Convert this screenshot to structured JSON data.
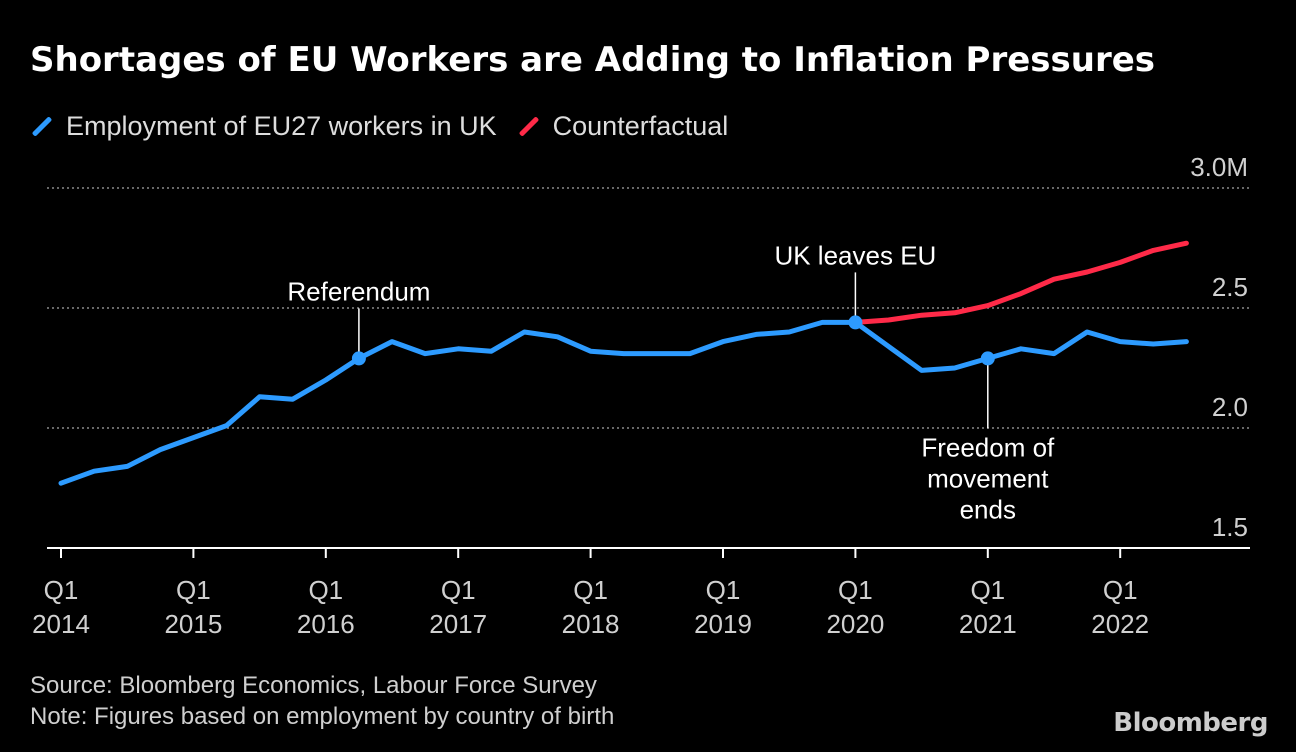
{
  "title": "Shortages of EU Workers are Adding to Inflation Pressures",
  "legend": [
    {
      "label": "Employment of EU27 workers in UK",
      "color": "#2d9bff"
    },
    {
      "label": "Counterfactual",
      "color": "#ff2a48"
    }
  ],
  "footer": {
    "source": "Source: Bloomberg Economics, Labour Force Survey",
    "note": "Note: Figures based on employment by country of birth"
  },
  "brand": "Bloomberg",
  "chart_data": {
    "type": "line",
    "ylim": [
      1.5,
      3.0
    ],
    "y_ticks": [
      {
        "value": 1.5,
        "label": "1.5"
      },
      {
        "value": 2.0,
        "label": "2.0"
      },
      {
        "value": 2.5,
        "label": "2.5"
      },
      {
        "value": 3.0,
        "label": "3.0M"
      }
    ],
    "grid": true,
    "x_ticks": [
      {
        "q": 0,
        "line1": "Q1",
        "line2": "2014"
      },
      {
        "q": 4,
        "line1": "Q1",
        "line2": "2015"
      },
      {
        "q": 8,
        "line1": "Q1",
        "line2": "2016"
      },
      {
        "q": 12,
        "line1": "Q1",
        "line2": "2017"
      },
      {
        "q": 16,
        "line1": "Q1",
        "line2": "2018"
      },
      {
        "q": 20,
        "line1": "Q1",
        "line2": "2019"
      },
      {
        "q": 24,
        "line1": "Q1",
        "line2": "2020"
      },
      {
        "q": 28,
        "line1": "Q1",
        "line2": "2021"
      },
      {
        "q": 32,
        "line1": "Q1",
        "line2": "2022"
      }
    ],
    "series": [
      {
        "name": "Employment of EU27 workers in UK",
        "color": "#2d9bff",
        "start_q": 0,
        "values": [
          1.77,
          1.82,
          1.84,
          1.91,
          1.96,
          2.01,
          2.13,
          2.12,
          2.2,
          2.29,
          2.36,
          2.31,
          2.33,
          2.32,
          2.4,
          2.38,
          2.32,
          2.31,
          2.31,
          2.31,
          2.36,
          2.39,
          2.4,
          2.44,
          2.44,
          2.34,
          2.24,
          2.25,
          2.29,
          2.33,
          2.31,
          2.4,
          2.36,
          2.35,
          2.36
        ]
      },
      {
        "name": "Counterfactual",
        "color": "#ff2a48",
        "start_q": 24,
        "values": [
          2.44,
          2.45,
          2.47,
          2.48,
          2.51,
          2.56,
          2.62,
          2.65,
          2.69,
          2.74,
          2.77
        ]
      }
    ],
    "annotations": [
      {
        "q": 9,
        "value": 2.29,
        "lines": [
          "Referendum"
        ],
        "position": "above"
      },
      {
        "q": 24,
        "value": 2.44,
        "lines": [
          "UK leaves EU"
        ],
        "position": "above"
      },
      {
        "q": 28,
        "value": 2.29,
        "lines": [
          "Freedom of",
          "movement",
          "ends"
        ],
        "position": "below"
      }
    ]
  }
}
